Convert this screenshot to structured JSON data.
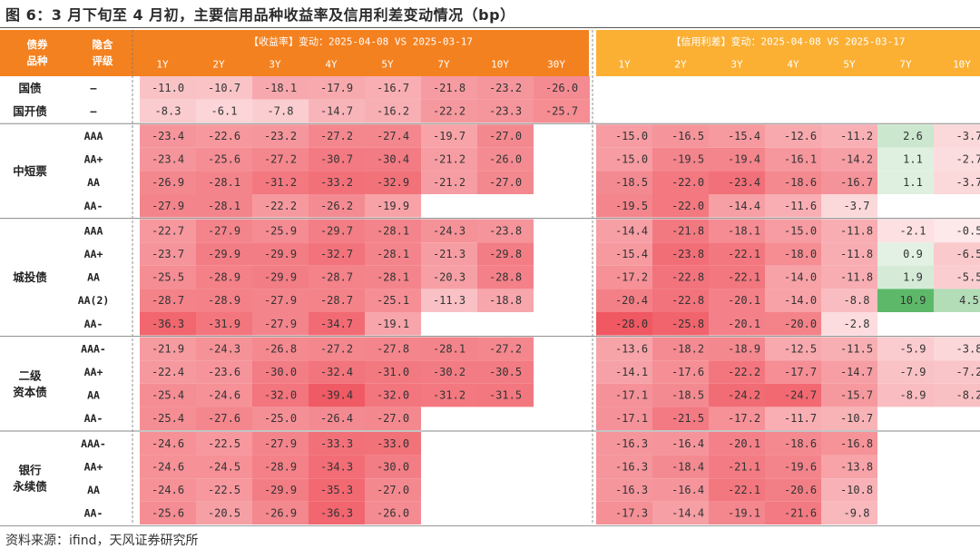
{
  "title": "图 6：3 月下旬至 4 月初，主要信用品种收益率及信用利差变动情况（bp）",
  "source": "资料来源：ifind，天风证券研究所",
  "colors": {
    "header_yield": "#f4811f",
    "header_spread": "#fbb034",
    "header_left": "#f4811f",
    "neg_strong": "#f26b74",
    "pos_strong": "#5fbb6a"
  },
  "chart_data": {
    "type": "table",
    "unit": "bp",
    "header": {
      "col_bond": "债券品种",
      "col_rating": "隐含评级",
      "yield_group": "【收益率】变动：2025-04-08 VS 2025-03-17",
      "spread_group": "【信用利差】变动：2025-04-08 VS 2025-03-17",
      "yield_tenors": [
        "1Y",
        "2Y",
        "3Y",
        "4Y",
        "5Y",
        "7Y",
        "10Y",
        "30Y"
      ],
      "spread_tenors": [
        "1Y",
        "2Y",
        "3Y",
        "4Y",
        "5Y",
        "7Y",
        "10Y"
      ]
    },
    "groups": [
      {
        "name": "",
        "rows": [
          {
            "bond": "国债",
            "rating": "–",
            "yield": [
              -11.0,
              -10.7,
              -18.1,
              -17.9,
              -16.7,
              -21.8,
              -23.2,
              -26.0
            ],
            "spread": [
              null,
              null,
              null,
              null,
              null,
              null,
              null
            ]
          },
          {
            "bond": "国开债",
            "rating": "–",
            "yield": [
              -8.3,
              -6.1,
              -7.8,
              -14.7,
              -16.2,
              -22.2,
              -23.3,
              -25.7
            ],
            "spread": [
              null,
              null,
              null,
              null,
              null,
              null,
              null
            ]
          }
        ]
      },
      {
        "name": "中短票",
        "rows": [
          {
            "rating": "AAA",
            "yield": [
              -23.4,
              -22.6,
              -23.2,
              -27.2,
              -27.4,
              -19.7,
              -27.0,
              null
            ],
            "spread": [
              -15.0,
              -16.5,
              -15.4,
              -12.6,
              -11.2,
              2.6,
              -3.7
            ]
          },
          {
            "rating": "AA+",
            "yield": [
              -23.4,
              -25.6,
              -27.2,
              -30.7,
              -30.4,
              -21.2,
              -26.0,
              null
            ],
            "spread": [
              -15.0,
              -19.5,
              -19.4,
              -16.1,
              -14.2,
              1.1,
              -2.7
            ]
          },
          {
            "rating": "AA",
            "yield": [
              -26.9,
              -28.1,
              -31.2,
              -33.2,
              -32.9,
              -21.2,
              -27.0,
              null
            ],
            "spread": [
              -18.5,
              -22.0,
              -23.4,
              -18.6,
              -16.7,
              1.1,
              -3.7
            ]
          },
          {
            "rating": "AA-",
            "yield": [
              -27.9,
              -28.1,
              -22.2,
              -26.2,
              -19.9,
              null,
              null,
              null
            ],
            "spread": [
              -19.5,
              -22.0,
              -14.4,
              -11.6,
              -3.7,
              null,
              null
            ]
          }
        ]
      },
      {
        "name": "城投债",
        "rows": [
          {
            "rating": "AAA",
            "yield": [
              -22.7,
              -27.9,
              -25.9,
              -29.7,
              -28.1,
              -24.3,
              -23.8,
              null
            ],
            "spread": [
              -14.4,
              -21.8,
              -18.1,
              -15.0,
              -11.8,
              -2.1,
              -0.5
            ]
          },
          {
            "rating": "AA+",
            "yield": [
              -23.7,
              -29.9,
              -29.9,
              -32.7,
              -28.1,
              -21.3,
              -29.8,
              null
            ],
            "spread": [
              -15.4,
              -23.8,
              -22.1,
              -18.0,
              -11.8,
              0.9,
              -6.5
            ]
          },
          {
            "rating": "AA",
            "yield": [
              -25.5,
              -28.9,
              -29.9,
              -28.7,
              -28.1,
              -20.3,
              -28.8,
              null
            ],
            "spread": [
              -17.2,
              -22.8,
              -22.1,
              -14.0,
              -11.8,
              1.9,
              -5.5
            ]
          },
          {
            "rating": "AA(2)",
            "yield": [
              -28.7,
              -28.9,
              -27.9,
              -28.7,
              -25.1,
              -11.3,
              -18.8,
              null
            ],
            "spread": [
              -20.4,
              -22.8,
              -20.1,
              -14.0,
              -8.8,
              10.9,
              4.5
            ]
          },
          {
            "rating": "AA-",
            "yield": [
              -36.3,
              -31.9,
              -27.9,
              -34.7,
              -19.1,
              null,
              null,
              null
            ],
            "spread": [
              -28.0,
              -25.8,
              -20.1,
              -20.0,
              -2.8,
              null,
              null
            ]
          }
        ]
      },
      {
        "name": "二级\n资本债",
        "rows": [
          {
            "rating": "AAA-",
            "yield": [
              -21.9,
              -24.3,
              -26.8,
              -27.2,
              -27.8,
              -28.1,
              -27.2,
              null
            ],
            "spread": [
              -13.6,
              -18.2,
              -18.9,
              -12.5,
              -11.5,
              -5.9,
              -3.8
            ]
          },
          {
            "rating": "AA+",
            "yield": [
              -22.4,
              -23.6,
              -30.0,
              -32.4,
              -31.0,
              -30.2,
              -30.5,
              null
            ],
            "spread": [
              -14.1,
              -17.6,
              -22.2,
              -17.7,
              -14.7,
              -7.9,
              -7.2
            ]
          },
          {
            "rating": "AA",
            "yield": [
              -25.4,
              -24.6,
              -32.0,
              -39.4,
              -32.0,
              -31.2,
              -31.5,
              null
            ],
            "spread": [
              -17.1,
              -18.5,
              -24.2,
              -24.7,
              -15.7,
              -8.9,
              -8.2
            ]
          },
          {
            "rating": "AA-",
            "yield": [
              -25.4,
              -27.6,
              -25.0,
              -26.4,
              -27.0,
              null,
              null,
              null
            ],
            "spread": [
              -17.1,
              -21.5,
              -17.2,
              -11.7,
              -10.7,
              null,
              null
            ]
          }
        ]
      },
      {
        "name": "银行\n永续债",
        "rows": [
          {
            "rating": "AAA-",
            "yield": [
              -24.6,
              -22.5,
              -27.9,
              -33.3,
              -33.0,
              null,
              null,
              null
            ],
            "spread": [
              -16.3,
              -16.4,
              -20.1,
              -18.6,
              -16.8,
              null,
              null
            ]
          },
          {
            "rating": "AA+",
            "yield": [
              -24.6,
              -24.5,
              -28.9,
              -34.3,
              -30.0,
              null,
              null,
              null
            ],
            "spread": [
              -16.3,
              -18.4,
              -21.1,
              -19.6,
              -13.8,
              null,
              null
            ]
          },
          {
            "rating": "AA",
            "yield": [
              -24.6,
              -22.5,
              -29.9,
              -35.3,
              -27.0,
              null,
              null,
              null
            ],
            "spread": [
              -16.3,
              -16.4,
              -22.1,
              -20.6,
              -10.8,
              null,
              null
            ]
          },
          {
            "rating": "AA-",
            "yield": [
              -25.6,
              -20.5,
              -26.9,
              -36.3,
              -26.0,
              null,
              null,
              null
            ],
            "spread": [
              -17.3,
              -14.4,
              -19.1,
              -21.6,
              -9.8,
              null,
              null
            ]
          }
        ]
      }
    ]
  }
}
